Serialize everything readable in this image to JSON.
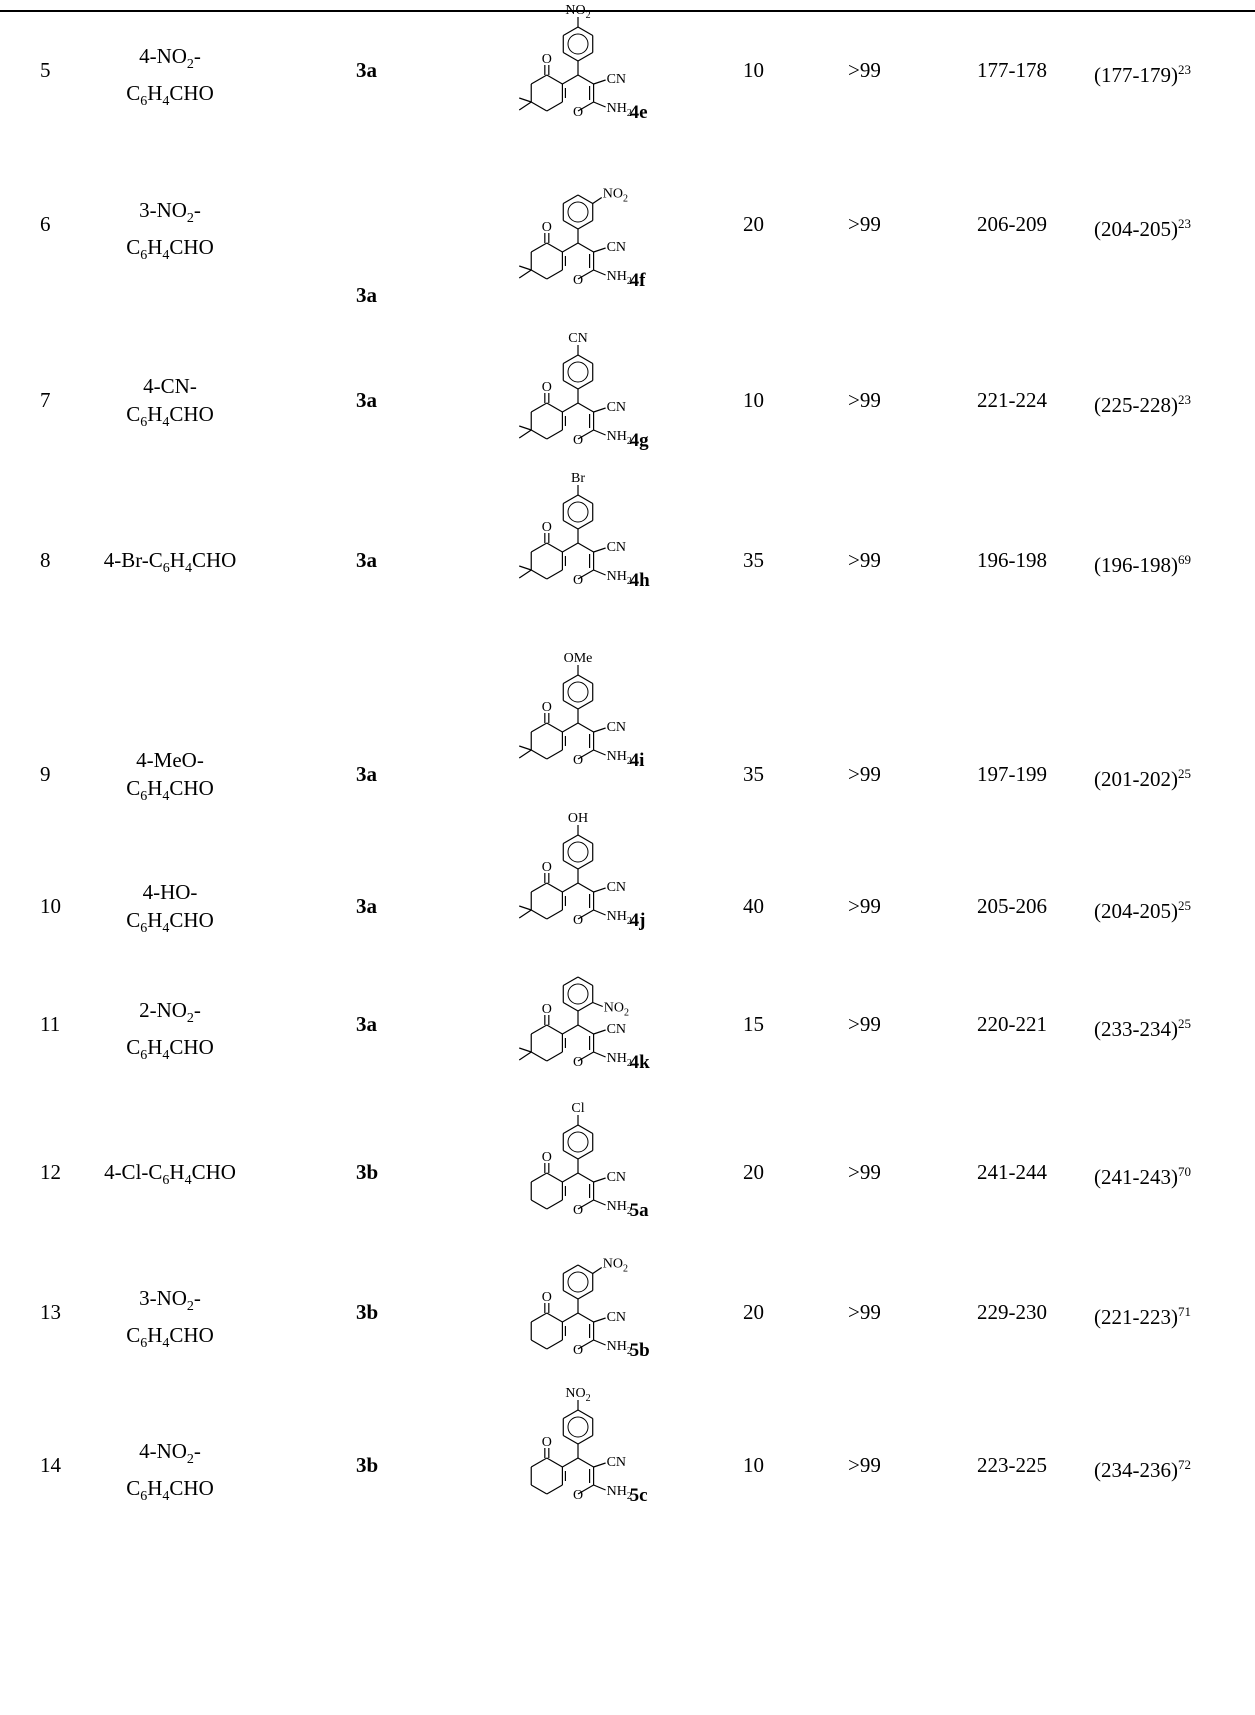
{
  "rows": [
    {
      "entry": "5",
      "aldehyde_pre": "4-NO",
      "aldehyde_sub1": "2",
      "aldehyde_mid": "-",
      "aldehyde_line2_pre": "C",
      "aldehyde_line2_sub1": "6",
      "aldehyde_line2_mid": "H",
      "aldehyde_line2_sub2": "4",
      "aldehyde_line2_post": "CHO",
      "diketone": "3a",
      "substituent": "NO2",
      "subst_pos": "para",
      "product": "4e",
      "ring": "dimedone",
      "time": "10",
      "yield": ">99",
      "mp_found": "177-178",
      "mp_lit": "(177-179)",
      "ref": "23"
    },
    {
      "entry": "6",
      "aldehyde_pre": "3-NO",
      "aldehyde_sub1": "2",
      "aldehyde_mid": "-",
      "aldehyde_line2_pre": "C",
      "aldehyde_line2_sub1": "6",
      "aldehyde_line2_mid": "H",
      "aldehyde_line2_sub2": "4",
      "aldehyde_line2_post": "CHO",
      "diketone": "3a",
      "substituent": "NO2",
      "subst_pos": "meta",
      "product": "4f",
      "ring": "dimedone",
      "time": "20",
      "yield": ">99",
      "mp_found": "206-209",
      "mp_lit": "(204-205)",
      "ref": "23"
    },
    {
      "entry": "7",
      "aldehyde_pre": "4-CN-",
      "aldehyde_sub1": "",
      "aldehyde_mid": "",
      "aldehyde_line2_pre": "C",
      "aldehyde_line2_sub1": "6",
      "aldehyde_line2_mid": "H",
      "aldehyde_line2_sub2": "4",
      "aldehyde_line2_post": "CHO",
      "diketone": "3a",
      "substituent": "CN",
      "subst_pos": "para",
      "product": "4g",
      "ring": "dimedone",
      "time": "10",
      "yield": ">99",
      "mp_found": "221-224",
      "mp_lit": "(225-228)",
      "ref": "23"
    },
    {
      "entry": "8",
      "aldehyde_pre": "4-Br-C",
      "aldehyde_sub1": "6",
      "aldehyde_mid": "H",
      "aldehyde_sub2": "4",
      "aldehyde_post": "CHO",
      "single_line": true,
      "diketone": "3a",
      "substituent": "Br",
      "subst_pos": "para",
      "product": "4h",
      "ring": "dimedone",
      "time": "35",
      "yield": ">99",
      "mp_found": "196-198",
      "mp_lit": "(196-198)",
      "ref": "69"
    },
    {
      "entry": "9",
      "aldehyde_pre": "4-MeO-",
      "aldehyde_sub1": "",
      "aldehyde_mid": "",
      "aldehyde_line2_pre": "C",
      "aldehyde_line2_sub1": "6",
      "aldehyde_line2_mid": "H",
      "aldehyde_line2_sub2": "4",
      "aldehyde_line2_post": "CHO",
      "diketone": "3a",
      "substituent": "OMe",
      "subst_pos": "para",
      "product": "4i",
      "ring": "dimedone",
      "time": "35",
      "yield": ">99",
      "mp_found": "197-199",
      "mp_lit": "(201-202)",
      "ref": "25"
    },
    {
      "entry": "10",
      "aldehyde_pre": "4-HO-",
      "aldehyde_sub1": "",
      "aldehyde_mid": "",
      "aldehyde_line2_pre": "C",
      "aldehyde_line2_sub1": "6",
      "aldehyde_line2_mid": "H",
      "aldehyde_line2_sub2": "4",
      "aldehyde_line2_post": "CHO",
      "diketone": "3a",
      "substituent": "OH",
      "subst_pos": "para",
      "product": "4j",
      "ring": "dimedone",
      "time": "40",
      "yield": ">99",
      "mp_found": "205-206",
      "mp_lit": "(204-205)",
      "ref": "25"
    },
    {
      "entry": "11",
      "aldehyde_pre": "2-NO",
      "aldehyde_sub1": "2",
      "aldehyde_mid": "-",
      "aldehyde_line2_pre": "C",
      "aldehyde_line2_sub1": "6",
      "aldehyde_line2_mid": "H",
      "aldehyde_line2_sub2": "4",
      "aldehyde_line2_post": "CHO",
      "diketone": "3a",
      "substituent": "NO2",
      "subst_pos": "ortho",
      "product": "4k",
      "ring": "dimedone",
      "time": "15",
      "yield": ">99",
      "mp_found": "220-221",
      "mp_lit": "(233-234)",
      "ref": "25"
    },
    {
      "entry": "12",
      "aldehyde_pre": "4-Cl-C",
      "aldehyde_sub1": "6",
      "aldehyde_mid": "H",
      "aldehyde_sub2": "4",
      "aldehyde_post": "CHO",
      "single_line": true,
      "diketone": "3b",
      "substituent": "Cl",
      "subst_pos": "para",
      "product": "5a",
      "ring": "cyclohexanedione",
      "time": "20",
      "yield": ">99",
      "mp_found": "241-244",
      "mp_lit": "(241-243)",
      "ref": "70"
    },
    {
      "entry": "13",
      "aldehyde_pre": "3-NO",
      "aldehyde_sub1": "2",
      "aldehyde_mid": "-",
      "aldehyde_line2_pre": "C",
      "aldehyde_line2_sub1": "6",
      "aldehyde_line2_mid": "H",
      "aldehyde_line2_sub2": "4",
      "aldehyde_line2_post": "CHO",
      "diketone": "3b",
      "substituent": "NO2",
      "subst_pos": "meta",
      "product": "5b",
      "ring": "cyclohexanedione",
      "time": "20",
      "yield": ">99",
      "mp_found": "229-230",
      "mp_lit": "(221-223)",
      "ref": "71"
    },
    {
      "entry": "14",
      "aldehyde_pre": "4-NO",
      "aldehyde_sub1": "2",
      "aldehyde_mid": "-",
      "aldehyde_line2_pre": "C",
      "aldehyde_line2_sub1": "6",
      "aldehyde_line2_mid": "H",
      "aldehyde_line2_sub2": "4",
      "aldehyde_line2_post": "CHO",
      "diketone": "3b",
      "substituent": "NO2",
      "subst_pos": "para",
      "product": "5c",
      "ring": "cyclohexanedione",
      "time": "10",
      "yield": ">99",
      "mp_found": "223-225",
      "mp_lit": "(234-236)",
      "ref": "72"
    }
  ],
  "structure_labels": {
    "carbonyl_o": "O",
    "ring_o": "O",
    "cn": "CN",
    "nh2_main": "NH",
    "nh2_sub": "2"
  }
}
